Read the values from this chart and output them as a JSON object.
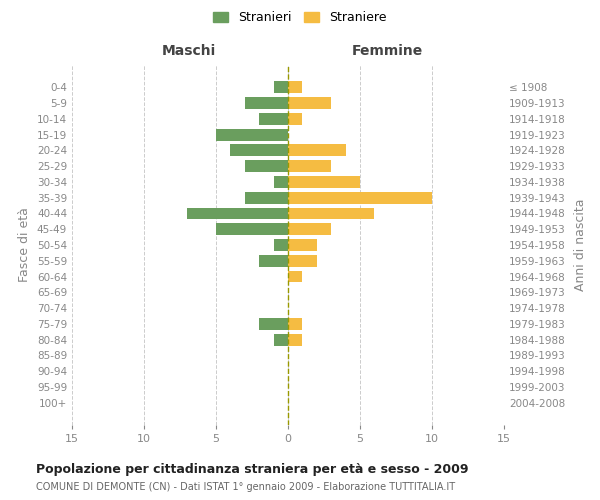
{
  "age_groups": [
    "0-4",
    "5-9",
    "10-14",
    "15-19",
    "20-24",
    "25-29",
    "30-34",
    "35-39",
    "40-44",
    "45-49",
    "50-54",
    "55-59",
    "60-64",
    "65-69",
    "70-74",
    "75-79",
    "80-84",
    "85-89",
    "90-94",
    "95-99",
    "100+"
  ],
  "birth_years": [
    "2004-2008",
    "1999-2003",
    "1994-1998",
    "1989-1993",
    "1984-1988",
    "1979-1983",
    "1974-1978",
    "1969-1973",
    "1964-1968",
    "1959-1963",
    "1954-1958",
    "1949-1953",
    "1944-1948",
    "1939-1943",
    "1934-1938",
    "1929-1933",
    "1924-1928",
    "1919-1923",
    "1914-1918",
    "1909-1913",
    "≤ 1908"
  ],
  "males": [
    1,
    3,
    2,
    5,
    4,
    3,
    1,
    3,
    7,
    5,
    1,
    2,
    0,
    0,
    0,
    2,
    1,
    0,
    0,
    0,
    0
  ],
  "females": [
    1,
    3,
    1,
    0,
    4,
    3,
    5,
    10,
    6,
    3,
    2,
    2,
    1,
    0,
    0,
    1,
    1,
    0,
    0,
    0,
    0
  ],
  "male_color": "#6a9e5e",
  "female_color": "#f5bc42",
  "title": "Popolazione per cittadinanza straniera per età e sesso - 2009",
  "subtitle": "COMUNE DI DEMONTE (CN) - Dati ISTAT 1° gennaio 2009 - Elaborazione TUTTITALIA.IT",
  "xlabel_left": "Maschi",
  "xlabel_right": "Femmine",
  "ylabel_left": "Fasce di età",
  "ylabel_right": "Anni di nascita",
  "xlim": 15,
  "legend_stranieri": "Stranieri",
  "legend_straniere": "Straniere",
  "background_color": "#ffffff",
  "grid_color": "#cccccc",
  "tick_color": "#888888",
  "center_line_color": "#999900"
}
